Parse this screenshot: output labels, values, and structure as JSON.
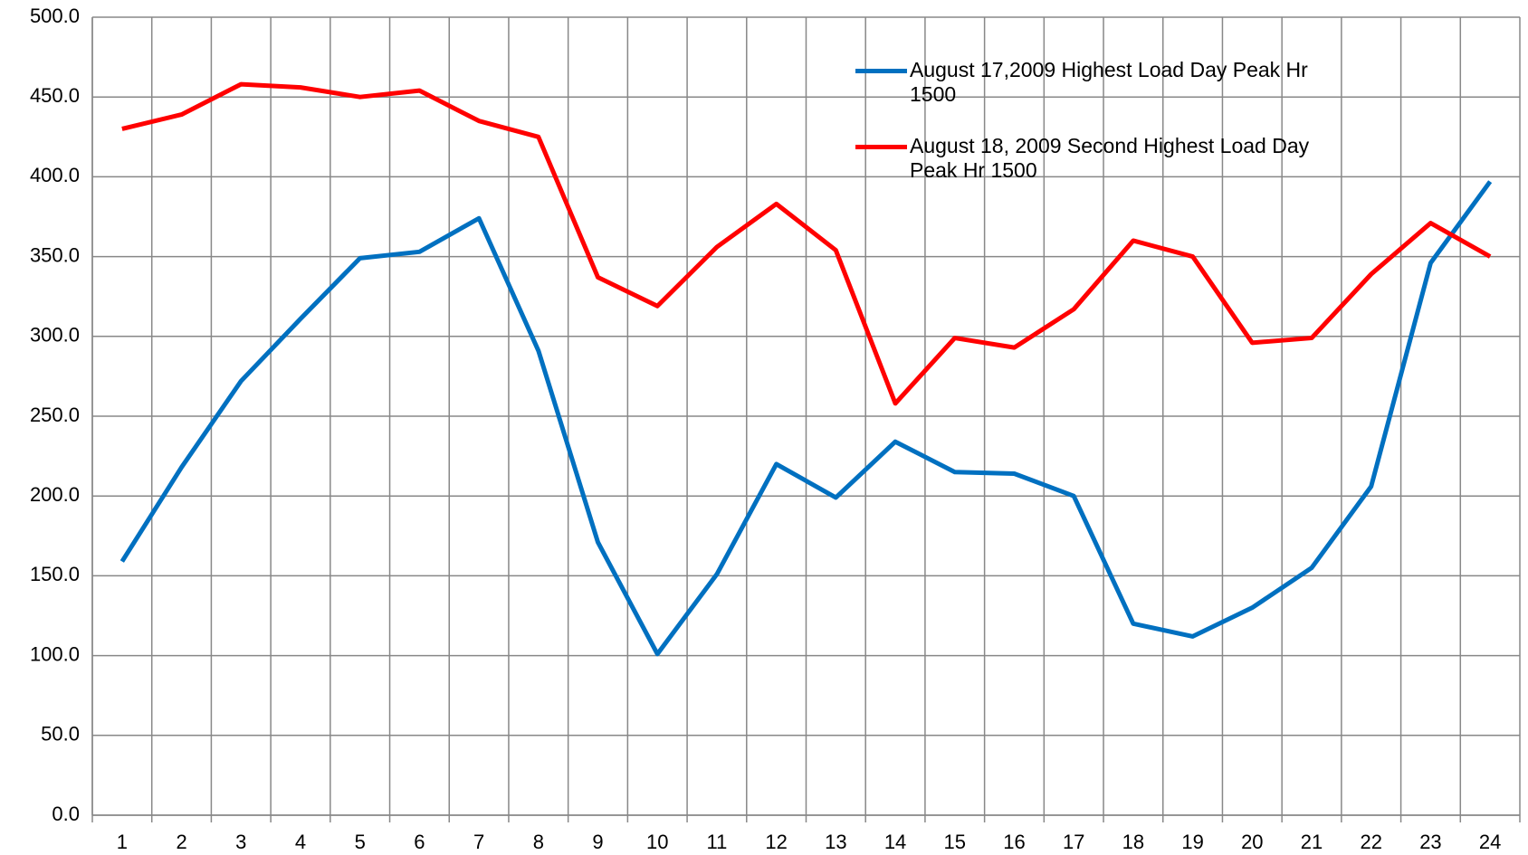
{
  "chart_data": {
    "type": "line",
    "categories": [
      "1",
      "2",
      "3",
      "4",
      "5",
      "6",
      "7",
      "8",
      "9",
      "10",
      "11",
      "12",
      "13",
      "14",
      "15",
      "16",
      "17",
      "18",
      "19",
      "20",
      "21",
      "22",
      "23",
      "24"
    ],
    "series": [
      {
        "name": "August 17,2009 Highest Load Day Peak Hr 1500",
        "color": "#0070c0",
        "values": [
          159,
          218,
          272,
          311,
          349,
          353,
          374,
          291,
          171,
          101,
          151,
          220,
          199,
          234,
          215,
          214,
          200,
          120,
          112,
          130,
          155,
          206,
          346,
          397
        ]
      },
      {
        "name": "August 18, 2009 Second Highest Load Day Peak Hr 1500",
        "color": "#ff0000",
        "values": [
          430,
          439,
          458,
          456,
          450,
          454,
          435,
          425,
          337,
          319,
          356,
          383,
          354,
          258,
          299,
          293,
          317,
          360,
          350,
          296,
          299,
          339,
          371,
          350
        ]
      }
    ],
    "ylim": [
      0,
      500
    ],
    "yticks": [
      {
        "value": 0,
        "label": "0.0"
      },
      {
        "value": 50,
        "label": "50.0"
      },
      {
        "value": 100,
        "label": "100.0"
      },
      {
        "value": 150,
        "label": "150.0"
      },
      {
        "value": 200,
        "label": "200.0"
      },
      {
        "value": 250,
        "label": "250.0"
      },
      {
        "value": 300,
        "label": "300.0"
      },
      {
        "value": 350,
        "label": "350.0"
      },
      {
        "value": 400,
        "label": "400.0"
      },
      {
        "value": 450,
        "label": "450.0"
      },
      {
        "value": 500,
        "label": "500.0"
      }
    ],
    "grid": true
  }
}
